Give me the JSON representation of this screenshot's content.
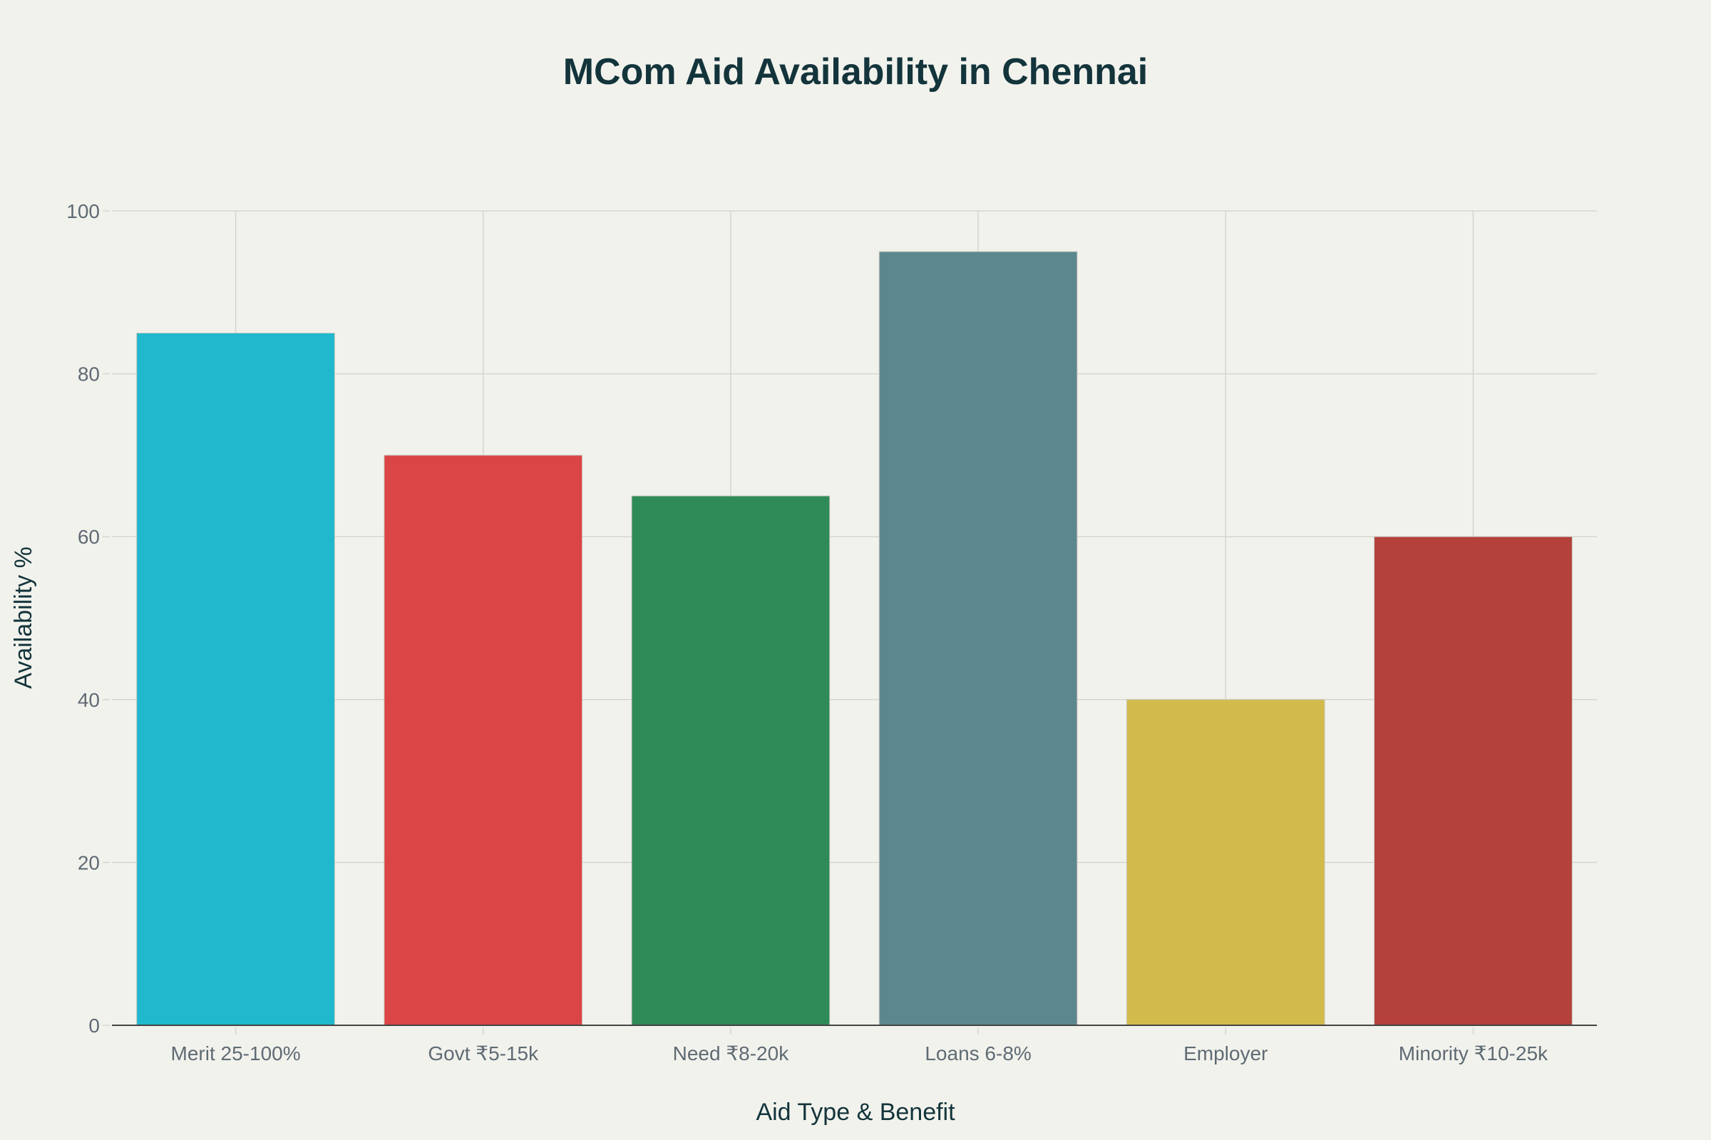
{
  "chart_data": {
    "type": "bar",
    "title": "MCom Aid Availability in Chennai",
    "xlabel": "Aid Type & Benefit",
    "ylabel": "Availability %",
    "categories": [
      "Merit 25-100%",
      "Govt ₹5-15k",
      "Need ₹8-20k",
      "Loans 6-8%",
      "Employer",
      "Minority ₹10-25k"
    ],
    "values": [
      85,
      70,
      65,
      95,
      40,
      60
    ],
    "colors": [
      "#1fb8cd",
      "#db4545",
      "#2e8b57",
      "#5d878f",
      "#d2ba4c",
      "#b4413c"
    ],
    "ylim": [
      0,
      100
    ],
    "yticks": [
      0,
      20,
      40,
      60,
      80,
      100
    ],
    "grid": true,
    "legend": "none"
  }
}
